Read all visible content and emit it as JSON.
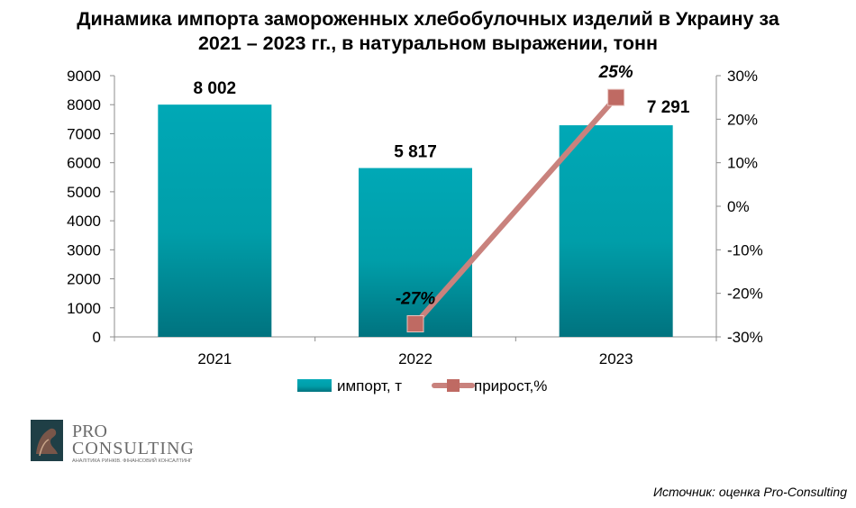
{
  "chart_data": {
    "type": "bar",
    "title": "Динамика импорта замороженных хлебобулочных изделий в Украину за 2021 – 2023 гг., в натуральном выражении, тонн",
    "title_lines": [
      "Динамика импорта замороженных хлебобулочных изделий в Украину за",
      "2021 – 2023 гг., в натуральном выражении, тонн"
    ],
    "categories": [
      "2021",
      "2022",
      "2023"
    ],
    "series": [
      {
        "name": "импорт, т",
        "type": "bar",
        "axis": "left",
        "color": "#00a3b2",
        "values": [
          8002,
          5817,
          7291
        ],
        "labels": [
          "8 002",
          "5 817",
          "7 291"
        ]
      },
      {
        "name": "прирост,%",
        "type": "line",
        "axis": "right",
        "color": "#c9827d",
        "marker_color": "#bf6a63",
        "values": [
          null,
          -27,
          25
        ],
        "labels": [
          "",
          "-27%",
          "25%"
        ]
      }
    ],
    "y_left": {
      "min": 0,
      "max": 9000,
      "step": 1000,
      "ticks": [
        "0",
        "1000",
        "2000",
        "3000",
        "4000",
        "5000",
        "6000",
        "7000",
        "8000",
        "9000"
      ]
    },
    "y_right": {
      "min": -30,
      "max": 30,
      "step": 10,
      "ticks": [
        "-30%",
        "-20%",
        "-10%",
        "0%",
        "10%",
        "20%",
        "30%"
      ]
    },
    "grid": false,
    "legend_position": "bottom"
  },
  "logo": {
    "line1": "PRO",
    "line2": "CONSULTING",
    "tagline": "АНАЛІТИКА РИНКІВ. ФІНАНСОВИЙ КОНСАЛТИНГ"
  },
  "source": "Источник: оценка Pro-Consulting"
}
